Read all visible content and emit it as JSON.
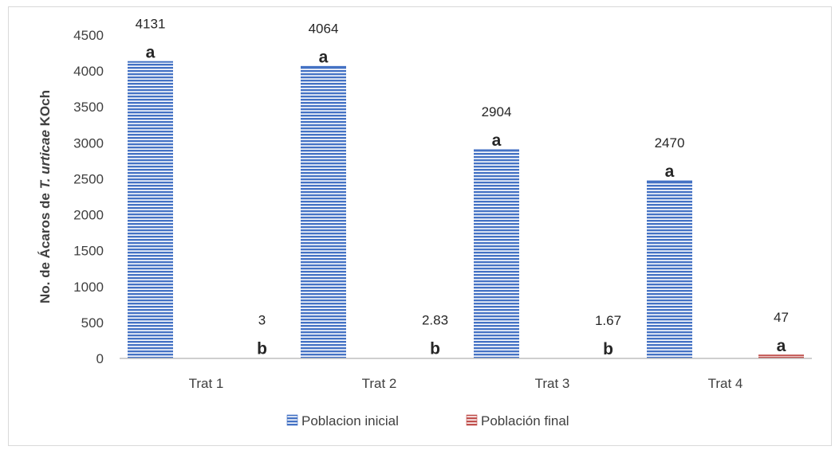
{
  "chart_data": {
    "type": "bar",
    "categories": [
      "Trat 1",
      "Trat 2",
      "Trat 3",
      "Trat 4"
    ],
    "series": [
      {
        "name": "Poblacion inicial",
        "values": [
          4131,
          4064,
          2904,
          2470
        ],
        "value_labels": [
          "4131",
          "4064",
          "2904",
          "2470"
        ],
        "letters": [
          "a",
          "a",
          "a",
          "a"
        ],
        "color": "#4472c4"
      },
      {
        "name": "Población final",
        "values": [
          3,
          2.83,
          1.67,
          47
        ],
        "value_labels": [
          "3",
          "2.83",
          "1.67",
          "47"
        ],
        "letters": [
          "b",
          "b",
          "b",
          "a"
        ],
        "color": "#c0504d"
      }
    ],
    "ylabel": {
      "prefix": "No. de Ácaros de ",
      "italic": "T. urticae",
      "suffix": " KOch"
    },
    "ylim": [
      0,
      4500
    ],
    "yticks": [
      "0",
      "500",
      "1000",
      "1500",
      "2000",
      "2500",
      "3000",
      "3500",
      "4000",
      "4500"
    ],
    "grid": false,
    "legend_position": "bottom",
    "bar_pattern": "horizontal-stripes"
  }
}
